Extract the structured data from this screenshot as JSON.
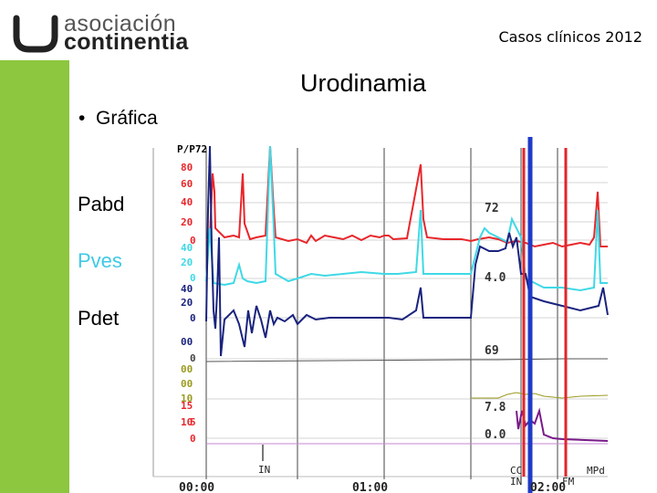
{
  "logo": {
    "line1": "asociación",
    "line2": "continentia"
  },
  "header": {
    "right_text": "Casos clínicos 2012"
  },
  "slide": {
    "title": "Urodinamia",
    "bullet": "Gráfica",
    "labels": [
      {
        "text": "Pabd",
        "color": "#000000"
      },
      {
        "text": "Pves",
        "color": "#3FC9E6"
      },
      {
        "text": "Pdet",
        "color": "#000000"
      }
    ]
  },
  "colors": {
    "accent_green": "#8DC63F",
    "pabd": "#E8262B",
    "pves": "#3FD9E6",
    "pdet": "#1A237E",
    "marker_blue": "#1E3AC8",
    "marker_red": "#E0262B"
  },
  "chart_data": {
    "type": "line",
    "header_label": "P/P72",
    "scale_labels": [
      "80",
      "60",
      "40",
      "20",
      "0",
      "40",
      "20",
      "0",
      "40",
      "20",
      "0",
      "00",
      "0",
      "00",
      "00",
      "10",
      "15",
      "10",
      "5",
      "0"
    ],
    "x_tick_labels": [
      "00:00",
      "01:00",
      "02:00"
    ],
    "event_labels": [
      "IN",
      "CC",
      "IN",
      "FM",
      "MPd"
    ],
    "annotations": [
      "72",
      "4.0",
      "69",
      "7.8",
      "0.0"
    ],
    "series": [
      {
        "name": "Pabd"
      },
      {
        "name": "Pves"
      },
      {
        "name": "Pdet"
      }
    ]
  }
}
